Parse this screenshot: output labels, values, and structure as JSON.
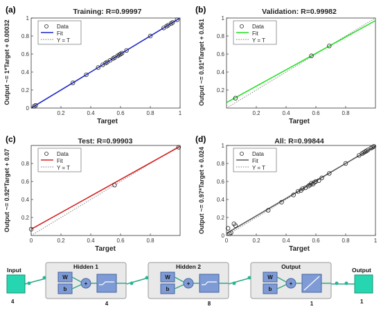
{
  "chart_data": [
    {
      "type": "scatter",
      "panel_label": "(a)",
      "title": "Training: R=0.99997",
      "xlabel": "Target",
      "ylabel": "Output ~= 1*Target + 0.00032",
      "xlim": [
        0,
        1
      ],
      "ylim": [
        0,
        1
      ],
      "xticks": [
        "0.2",
        "0.4",
        "0.6",
        "0.8",
        "1"
      ],
      "yticks": [
        "0",
        "0.2",
        "0.4",
        "0.6",
        "0.8",
        "1"
      ],
      "legend": [
        "Data",
        "Fit",
        "Y = T"
      ],
      "legend_position": "top-left",
      "fit": {
        "slope": 1,
        "intercept": 0.00032
      },
      "fit_color": "#1a23c8",
      "x": [
        0.02,
        0.03,
        0.28,
        0.37,
        0.45,
        0.48,
        0.5,
        0.51,
        0.53,
        0.55,
        0.56,
        0.58,
        0.59,
        0.6,
        0.61,
        0.64,
        0.8,
        0.89,
        0.91,
        0.92,
        0.94,
        0.95,
        0.98
      ],
      "y": [
        0.02,
        0.03,
        0.28,
        0.37,
        0.45,
        0.48,
        0.5,
        0.51,
        0.53,
        0.55,
        0.56,
        0.58,
        0.59,
        0.6,
        0.61,
        0.64,
        0.8,
        0.89,
        0.91,
        0.92,
        0.94,
        0.95,
        0.98
      ]
    },
    {
      "type": "scatter",
      "panel_label": "(b)",
      "title": "Validation: R=0.99982",
      "xlabel": "Target",
      "ylabel": "Output ~= 0.91*Target + 0.061",
      "xlim": [
        0,
        1
      ],
      "ylim": [
        0,
        1
      ],
      "xticks": [
        "0.2",
        "0.4",
        "0.6",
        "0.8"
      ],
      "yticks": [
        "0.2",
        "0.4",
        "0.6",
        "0.8",
        "1"
      ],
      "legend": [
        "Data",
        "Fit",
        "Y = T"
      ],
      "legend_position": "top-left",
      "fit": {
        "slope": 0.91,
        "intercept": 0.061
      },
      "fit_color": "#22e022",
      "x": [
        0.06,
        0.57,
        0.69
      ],
      "y": [
        0.11,
        0.58,
        0.69
      ]
    },
    {
      "type": "scatter",
      "panel_label": "(c)",
      "title": "Test: R=0.99903",
      "xlabel": "Target",
      "ylabel": "Output ~= 0.92*Target + 0.07",
      "xlim": [
        0,
        1
      ],
      "ylim": [
        0,
        1
      ],
      "xticks": [
        "0",
        "0.2",
        "0.4",
        "0.6",
        "0.8"
      ],
      "yticks": [
        "0.2",
        "0.4",
        "0.6",
        "0.8"
      ],
      "legend": [
        "Data",
        "Fit",
        "Y = T"
      ],
      "legend_position": "top-left",
      "fit": {
        "slope": 0.92,
        "intercept": 0.07
      },
      "fit_color": "#d42020",
      "x": [
        0.0,
        0.56,
        0.99
      ],
      "y": [
        0.07,
        0.56,
        0.98
      ]
    },
    {
      "type": "scatter",
      "panel_label": "(d)",
      "title": "All: R=0.99844",
      "xlabel": "Target",
      "ylabel": "Output ~= 0.97*Target + 0.024",
      "xlim": [
        0,
        1
      ],
      "ylim": [
        0,
        1
      ],
      "xticks": [
        "0",
        "0.2",
        "0.4",
        "0.6",
        "0.8",
        "1"
      ],
      "yticks": [
        "0",
        "0.2",
        "0.4",
        "0.6",
        "0.8",
        "1"
      ],
      "legend": [
        "Data",
        "Fit",
        "Y = T"
      ],
      "legend_position": "top-left",
      "fit": {
        "slope": 0.97,
        "intercept": 0.024
      },
      "fit_color": "#555555",
      "x": [
        0.01,
        0.02,
        0.03,
        0.06,
        0.05,
        0.28,
        0.37,
        0.45,
        0.48,
        0.5,
        0.51,
        0.53,
        0.55,
        0.56,
        0.57,
        0.58,
        0.59,
        0.6,
        0.62,
        0.64,
        0.69,
        0.8,
        0.89,
        0.91,
        0.92,
        0.93,
        0.94,
        0.95,
        0.97,
        0.98,
        0.99
      ],
      "y": [
        0.08,
        0.02,
        0.03,
        0.11,
        0.13,
        0.28,
        0.37,
        0.45,
        0.49,
        0.5,
        0.52,
        0.53,
        0.55,
        0.56,
        0.58,
        0.57,
        0.59,
        0.6,
        0.61,
        0.64,
        0.69,
        0.8,
        0.89,
        0.91,
        0.92,
        0.93,
        0.94,
        0.95,
        0.97,
        0.98,
        0.99
      ]
    }
  ],
  "network": {
    "input": {
      "label": "Input",
      "count": "4"
    },
    "layers": [
      {
        "title": "Hidden 1",
        "w": "W",
        "b": "b",
        "count": "4"
      },
      {
        "title": "Hidden 2",
        "w": "W",
        "b": "b",
        "count": "8"
      },
      {
        "title": "Output",
        "w": "W",
        "b": "b",
        "count": "1"
      }
    ],
    "output": {
      "label": "Output",
      "count": "1"
    },
    "colors": {
      "node": "#26b597",
      "block": "#7f9bd6",
      "box": "#e9e9e9",
      "edge": "#2aa882"
    }
  }
}
